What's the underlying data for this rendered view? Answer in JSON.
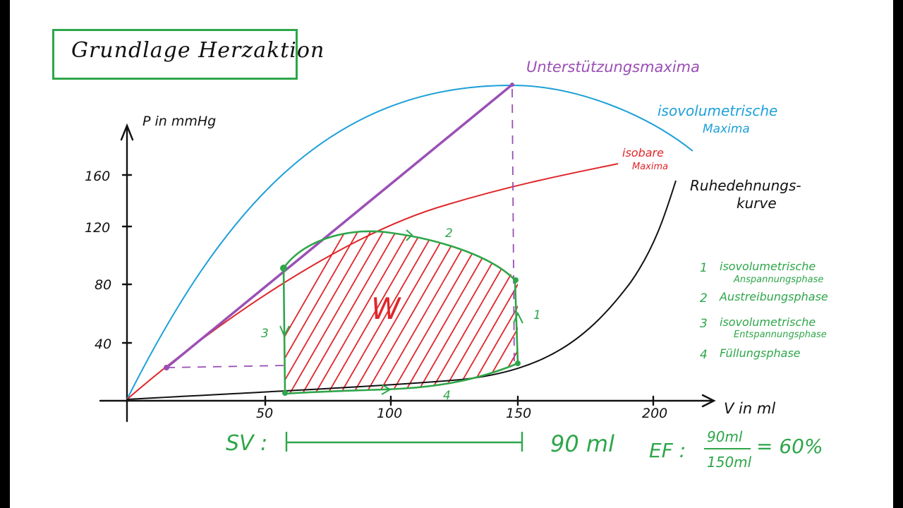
{
  "title": "Grundlage Herzaktion",
  "axes": {
    "y_label": "P in mmHg",
    "x_label": "V in ml",
    "y_ticks": [
      "40",
      "80",
      "120",
      "160"
    ],
    "x_ticks": [
      "50",
      "100",
      "150",
      "200"
    ]
  },
  "curve_labels": {
    "support_max": "Unterstützungsmaxima",
    "isovolumetric_max_line1": "isovolumetrische",
    "isovolumetric_max_line2": "Maxima",
    "isobaric_max_line1": "isobare",
    "isobaric_max_line2": "Maxima",
    "resting_line1": "Ruhedehnungs-",
    "resting_line2": "kurve"
  },
  "loop": {
    "work_label": "W",
    "phase_marks": [
      "1",
      "2",
      "3",
      "4"
    ]
  },
  "legend": [
    {
      "num": "1",
      "line1": "isovolumetrische",
      "line2": "Anspannungsphase"
    },
    {
      "num": "2",
      "line1": "Austreibungsphase",
      "line2": ""
    },
    {
      "num": "3",
      "line1": "isovolumetrische",
      "line2": "Entspannungsphase"
    },
    {
      "num": "4",
      "line1": "Füllungsphase",
      "line2": ""
    }
  ],
  "stroke_volume": {
    "label": "SV :",
    "value": "90 ml"
  },
  "ejection_fraction": {
    "label": "EF :",
    "numerator": "90ml",
    "denominator": "150ml",
    "result": "= 60%"
  },
  "colors": {
    "green": "#2ea64a",
    "blue": "#1ea0d8",
    "red": "#e0262b",
    "purple": "#9b4fb5",
    "black": "#111111"
  }
}
